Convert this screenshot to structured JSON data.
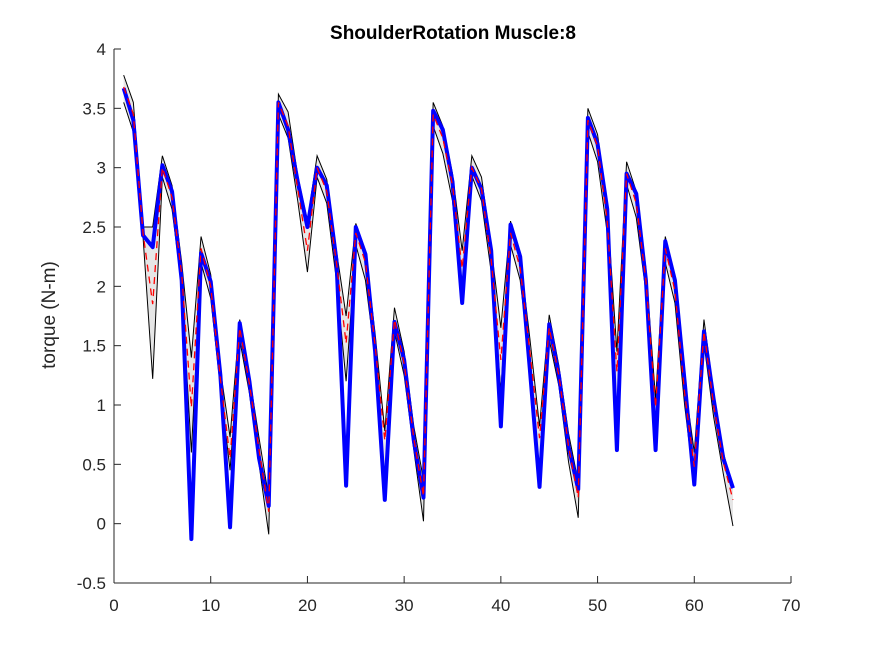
{
  "chart_data": {
    "type": "line",
    "title": "ShoulderRotation Muscle:8",
    "xlabel": "",
    "ylabel": "torque (N-m)",
    "xlim": [
      0,
      70
    ],
    "ylim": [
      -0.5,
      4
    ],
    "xticks": [
      0,
      10,
      20,
      30,
      40,
      50,
      60,
      70
    ],
    "yticks": [
      -0.5,
      0,
      0.5,
      1,
      1.5,
      2,
      2.5,
      3,
      3.5,
      4
    ],
    "grid": false,
    "colors": {
      "band_fill": "#e6e6e6",
      "band_edge": "#000000",
      "mean": "#ff0000",
      "model": "#0000ff"
    },
    "x": [
      1,
      2,
      3,
      4,
      5,
      6,
      7,
      8,
      9,
      10,
      11,
      12,
      13,
      14,
      15,
      16,
      17,
      18,
      19,
      20,
      21,
      22,
      23,
      24,
      25,
      26,
      27,
      28,
      29,
      30,
      31,
      32,
      33,
      34,
      35,
      36,
      37,
      38,
      39,
      40,
      41,
      42,
      43,
      44,
      45,
      46,
      47,
      48,
      49,
      50,
      51,
      52,
      53,
      54,
      55,
      56,
      57,
      58,
      59,
      60,
      61,
      62,
      63,
      64
    ],
    "series": [
      {
        "role": "band-upper",
        "values": [
          3.78,
          3.55,
          2.5,
          2.5,
          3.1,
          2.85,
          2.2,
          1.4,
          2.42,
          2.1,
          1.3,
          0.73,
          1.72,
          1.25,
          0.72,
          0.22,
          3.62,
          3.47,
          2.93,
          2.55,
          3.1,
          2.9,
          2.3,
          1.75,
          2.53,
          2.3,
          1.6,
          0.78,
          1.82,
          1.45,
          0.82,
          0.37,
          3.55,
          3.35,
          2.95,
          2.3,
          3.1,
          2.92,
          2.33,
          1.65,
          2.55,
          2.25,
          1.56,
          0.82,
          1.76,
          1.33,
          0.76,
          0.35,
          3.5,
          3.28,
          2.66,
          1.45,
          3.05,
          2.8,
          2.15,
          1.05,
          2.42,
          2.07,
          1.2,
          0.6,
          1.72,
          1.1,
          0.6,
          0.3
        ]
      },
      {
        "role": "band-lower",
        "values": [
          3.55,
          3.3,
          2.42,
          1.22,
          2.92,
          2.65,
          2.0,
          0.6,
          2.2,
          1.9,
          1.15,
          0.45,
          1.55,
          1.1,
          0.5,
          -0.09,
          3.45,
          3.25,
          2.72,
          2.12,
          2.92,
          2.7,
          2.05,
          1.2,
          2.35,
          2.05,
          1.4,
          0.38,
          1.62,
          1.25,
          0.62,
          0.02,
          3.35,
          3.12,
          2.72,
          1.88,
          2.93,
          2.72,
          2.12,
          1.12,
          2.35,
          2.05,
          1.35,
          0.42,
          1.55,
          1.16,
          0.52,
          0.05,
          3.3,
          3.05,
          2.45,
          0.62,
          2.86,
          2.58,
          1.95,
          0.62,
          2.2,
          1.86,
          1.0,
          0.32,
          1.52,
          0.9,
          0.42,
          -0.02
        ]
      },
      {
        "role": "mean",
        "values": [
          3.68,
          3.45,
          2.45,
          1.85,
          3.0,
          2.75,
          2.1,
          0.98,
          2.32,
          2.0,
          1.22,
          0.55,
          1.65,
          1.18,
          0.62,
          0.1,
          3.55,
          3.35,
          2.82,
          2.3,
          3.0,
          2.8,
          2.2,
          1.52,
          2.45,
          2.2,
          1.5,
          0.7,
          1.72,
          1.35,
          0.72,
          0.23,
          3.45,
          3.25,
          2.85,
          2.15,
          3.0,
          2.82,
          2.22,
          1.38,
          2.45,
          2.15,
          1.45,
          0.72,
          1.65,
          1.25,
          0.65,
          0.22,
          3.4,
          3.18,
          2.55,
          1.28,
          2.95,
          2.7,
          2.05,
          0.98,
          2.32,
          1.96,
          1.1,
          0.48,
          1.62,
          1.0,
          0.52,
          0.2
        ]
      },
      {
        "role": "model",
        "values": [
          3.67,
          3.4,
          2.43,
          2.33,
          3.02,
          2.8,
          2.05,
          -0.13,
          2.28,
          2.04,
          1.25,
          -0.03,
          1.69,
          1.2,
          0.55,
          0.15,
          3.55,
          3.32,
          2.88,
          2.5,
          3.0,
          2.85,
          2.22,
          0.32,
          2.5,
          2.27,
          1.45,
          0.2,
          1.7,
          1.38,
          0.7,
          0.22,
          3.48,
          3.32,
          2.88,
          1.86,
          3.0,
          2.82,
          2.3,
          0.82,
          2.52,
          2.25,
          1.3,
          0.31,
          1.68,
          1.25,
          0.65,
          0.29,
          3.42,
          3.2,
          2.65,
          0.62,
          2.95,
          2.78,
          2.05,
          0.62,
          2.38,
          2.05,
          1.2,
          0.33,
          1.62,
          1.05,
          0.55,
          0.3
        ]
      }
    ]
  }
}
